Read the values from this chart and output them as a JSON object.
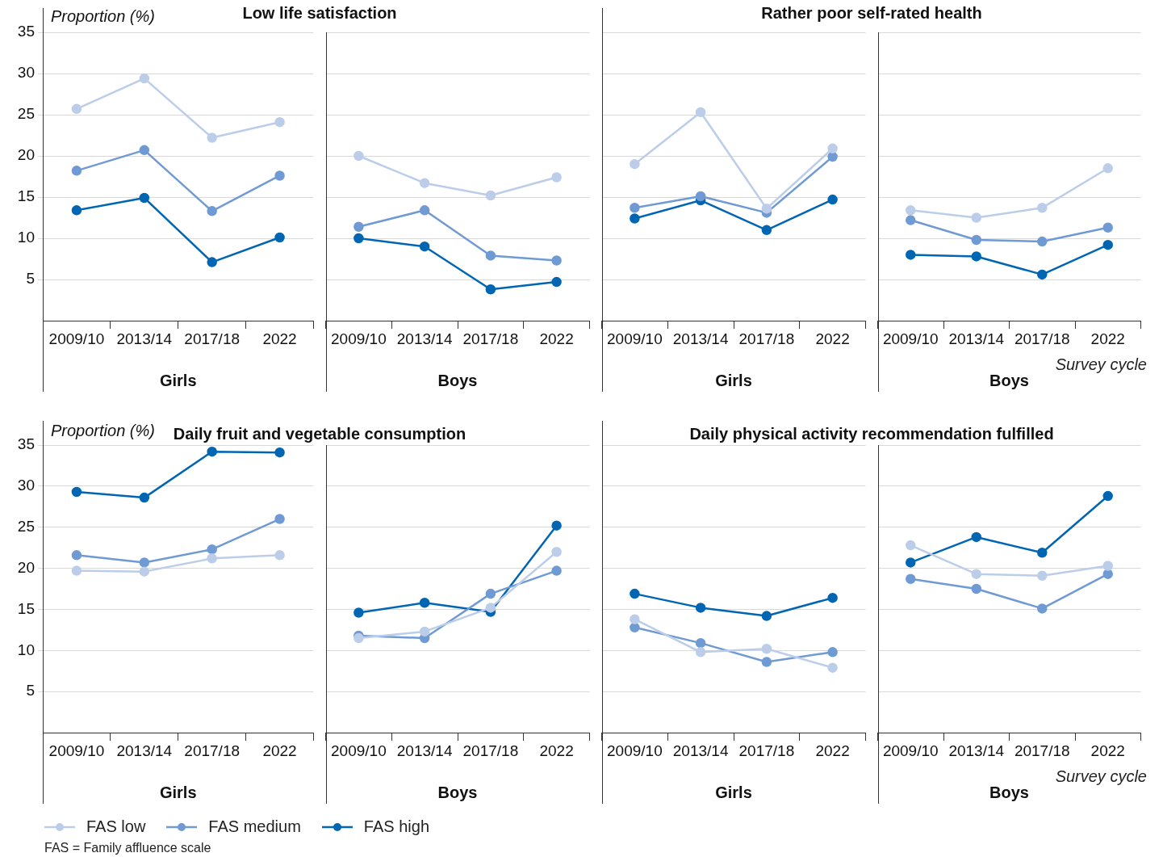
{
  "chart_data": [
    {
      "type": "line",
      "title": "Low life satisfaction",
      "ylabel": "Proportion (%)",
      "xlabel": "Girls",
      "categories": [
        "2009/10",
        "2013/14",
        "2017/18",
        "2022"
      ],
      "ylim": [
        0,
        35
      ],
      "yticks": [
        5,
        10,
        15,
        20,
        25,
        30,
        35
      ],
      "grid": "y",
      "marker": "circle",
      "series": [
        {
          "color": "#bccde9",
          "values": [
            25.7,
            29.4,
            22.2,
            24.1
          ]
        },
        {
          "color": "#6f9ad3",
          "values": [
            18.2,
            20.7,
            13.3,
            17.6
          ]
        },
        {
          "color": "#0066b3",
          "values": [
            13.4,
            14.9,
            7.1,
            10.1
          ]
        }
      ]
    },
    {
      "type": "line",
      "xlabel": "Boys",
      "categories": [
        "2009/10",
        "2013/14",
        "2017/18",
        "2022"
      ],
      "ylim": [
        0,
        35
      ],
      "yticks": [
        5,
        10,
        15,
        20,
        25,
        30,
        35
      ],
      "grid": "y",
      "marker": "circle",
      "tick_labels": "x",
      "series": [
        {
          "color": "#bccde9",
          "values": [
            20.0,
            16.7,
            15.2,
            17.4
          ]
        },
        {
          "color": "#6f9ad3",
          "values": [
            11.4,
            13.4,
            7.9,
            7.3
          ]
        },
        {
          "color": "#0066b3",
          "values": [
            10.0,
            9.0,
            3.8,
            4.7
          ]
        }
      ]
    },
    {
      "type": "line",
      "title": "Rather poor self-rated health",
      "xlabel": "Girls",
      "categories": [
        "2009/10",
        "2013/14",
        "2017/18",
        "2022"
      ],
      "ylim": [
        0,
        35
      ],
      "yticks": [
        5,
        10,
        15,
        20,
        25,
        30,
        35
      ],
      "grid": "y",
      "marker": "circle",
      "tick_labels": "x",
      "series": [
        {
          "color": "#bccde9",
          "values": [
            19.0,
            25.3,
            13.6,
            20.9
          ]
        },
        {
          "color": "#6f9ad3",
          "values": [
            13.7,
            15.1,
            13.1,
            19.9
          ]
        },
        {
          "color": "#0066b3",
          "values": [
            12.4,
            14.6,
            11.0,
            14.7
          ]
        }
      ]
    },
    {
      "type": "line",
      "xlabel": "Boys",
      "categories": [
        "2009/10",
        "2013/14",
        "2017/18",
        "2022"
      ],
      "ylim": [
        0,
        35
      ],
      "yticks": [
        5,
        10,
        15,
        20,
        25,
        30,
        35
      ],
      "grid": "y",
      "marker": "circle",
      "tick_labels": "x",
      "annotations": [
        "Survey cycle"
      ],
      "series": [
        {
          "color": "#bccde9",
          "values": [
            13.4,
            12.5,
            13.7,
            18.5
          ]
        },
        {
          "color": "#6f9ad3",
          "values": [
            12.2,
            9.8,
            9.6,
            11.3
          ]
        },
        {
          "color": "#0066b3",
          "values": [
            8.0,
            7.8,
            5.6,
            9.2
          ]
        }
      ]
    },
    {
      "type": "line",
      "title": "Daily fruit and vegetable consumption",
      "ylabel": "Proportion (%)",
      "xlabel": "Girls",
      "categories": [
        "2009/10",
        "2013/14",
        "2017/18",
        "2022"
      ],
      "ylim": [
        0,
        35
      ],
      "yticks": [
        5,
        10,
        15,
        20,
        25,
        30,
        35
      ],
      "grid": "y",
      "marker": "circle",
      "legend": "bottom",
      "annotations": [
        "FAS = Family affluence scale"
      ],
      "series": [
        {
          "name": "FAS low",
          "color": "#bccde9",
          "values": [
            19.7,
            19.6,
            21.2,
            21.6
          ]
        },
        {
          "name": "FAS medium",
          "color": "#6f9ad3",
          "values": [
            21.6,
            20.7,
            22.3,
            26.0
          ]
        },
        {
          "name": "FAS high",
          "color": "#0066b3",
          "values": [
            29.3,
            28.6,
            34.2,
            34.1
          ]
        }
      ]
    },
    {
      "type": "line",
      "xlabel": "Boys",
      "categories": [
        "2009/10",
        "2013/14",
        "2017/18",
        "2022"
      ],
      "ylim": [
        0,
        35
      ],
      "yticks": [
        5,
        10,
        15,
        20,
        25,
        30,
        35
      ],
      "grid": "y",
      "marker": "circle",
      "tick_labels": "x",
      "series": [
        {
          "color": "#bccde9",
          "values": [
            11.5,
            12.3,
            15.2,
            22.0
          ]
        },
        {
          "color": "#6f9ad3",
          "values": [
            11.8,
            11.5,
            16.9,
            19.7
          ]
        },
        {
          "color": "#0066b3",
          "values": [
            14.6,
            15.8,
            14.7,
            25.2
          ]
        }
      ]
    },
    {
      "type": "line",
      "title": "Daily physical activity recommendation fulfilled",
      "xlabel": "Girls",
      "categories": [
        "2009/10",
        "2013/14",
        "2017/18",
        "2022"
      ],
      "ylim": [
        0,
        35
      ],
      "yticks": [
        5,
        10,
        15,
        20,
        25,
        30,
        35
      ],
      "grid": "y",
      "marker": "circle",
      "tick_labels": "x",
      "series": [
        {
          "color": "#bccde9",
          "values": [
            13.8,
            9.8,
            10.2,
            7.9
          ]
        },
        {
          "color": "#6f9ad3",
          "values": [
            12.8,
            10.9,
            8.6,
            9.8
          ]
        },
        {
          "color": "#0066b3",
          "values": [
            16.9,
            15.2,
            14.2,
            16.4
          ]
        }
      ]
    },
    {
      "type": "line",
      "xlabel": "Boys",
      "categories": [
        "2009/10",
        "2013/14",
        "2017/18",
        "2022"
      ],
      "ylim": [
        0,
        35
      ],
      "yticks": [
        5,
        10,
        15,
        20,
        25,
        30,
        35
      ],
      "grid": "y",
      "marker": "circle",
      "tick_labels": "x",
      "annotations": [
        "Survey cycle"
      ],
      "series": [
        {
          "color": "#bccde9",
          "values": [
            22.8,
            19.3,
            19.1,
            20.3
          ]
        },
        {
          "color": "#6f9ad3",
          "values": [
            18.7,
            17.5,
            15.1,
            19.3
          ]
        },
        {
          "color": "#0066b3",
          "values": [
            20.7,
            23.8,
            21.9,
            28.8
          ]
        }
      ]
    }
  ]
}
